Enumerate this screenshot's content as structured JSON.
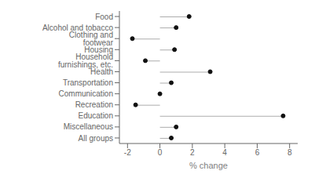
{
  "chart_data": {
    "type": "lollipop",
    "orientation": "horizontal",
    "categories": [
      "Food",
      "Alcohol and tobacco",
      "Clothing and footwear",
      "Housing",
      "Household furnishings, etc.",
      "Health",
      "Transportation",
      "Communication",
      "Recreation",
      "Education",
      "Miscellaneous",
      "All groups"
    ],
    "values": [
      1.8,
      1.0,
      -1.7,
      0.9,
      -0.9,
      3.1,
      0.7,
      0.0,
      -1.5,
      7.6,
      1.0,
      0.7
    ],
    "xlabel": "% change",
    "xlim": [
      -2.5,
      8.5
    ],
    "xticks": [
      -2,
      0,
      2,
      4,
      6,
      8
    ],
    "color": "#111111"
  }
}
